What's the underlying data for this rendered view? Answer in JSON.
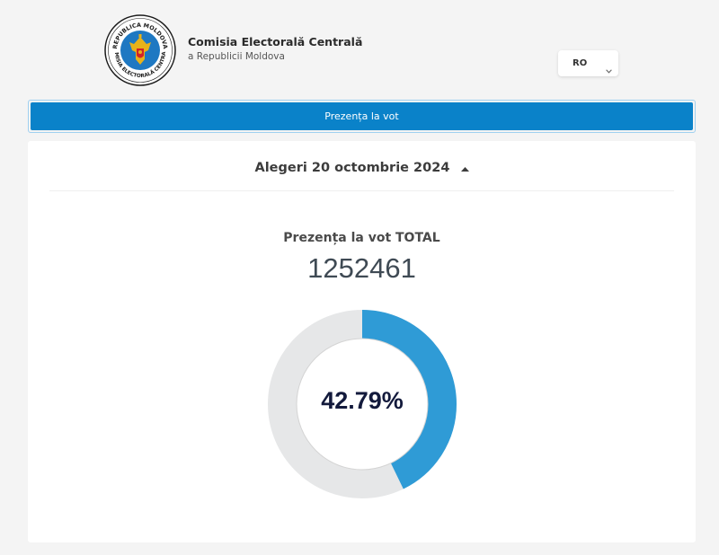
{
  "header": {
    "logo_text_top": "REPUBLICA MOLDOVA",
    "logo_text_bottom": "COMISIA ELECTORALĂ CENTRALĂ",
    "org_name": "Comisia Electorală Centrală",
    "org_subtitle": "a Republicii Moldova",
    "language": "RO"
  },
  "nav": {
    "label": "Prezența la vot"
  },
  "election": {
    "label": "Alegeri 20 octombrie 2024"
  },
  "turnout": {
    "title": "Prezența la vot TOTAL",
    "total": "1252461",
    "percent_label": "42.79%",
    "percent_value": 42.79
  },
  "colors": {
    "nav_bar": "#0a82c9",
    "donut_fill": "#2f9bd6",
    "donut_track": "#e6e7e8"
  },
  "icons": {
    "language_dropdown": "chevron-down-icon",
    "election_toggle": "caret-up-icon"
  }
}
